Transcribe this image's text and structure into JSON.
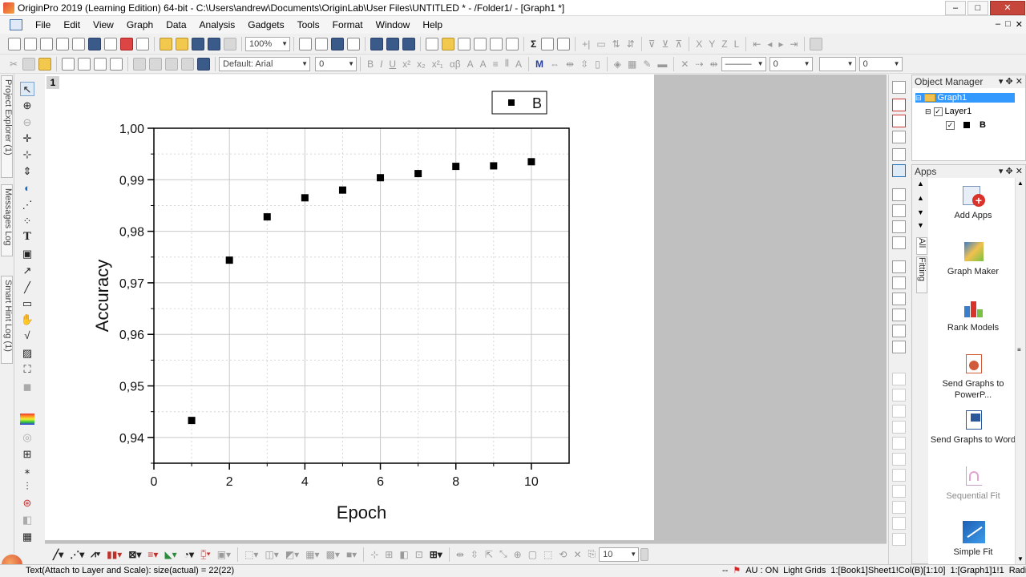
{
  "window": {
    "title": "OriginPro 2019 (Learning Edition) 64-bit - C:\\Users\\andrew\\Documents\\OriginLab\\User Files\\UNTITLED * - /Folder1/ - [Graph1 *]",
    "buttons": [
      "–",
      "□",
      "✕"
    ]
  },
  "menu": {
    "items": [
      "File",
      "Edit",
      "View",
      "Graph",
      "Data",
      "Analysis",
      "Gadgets",
      "Tools",
      "Format",
      "Window",
      "Help"
    ],
    "mdi_buttons": [
      "–",
      "□",
      "✕"
    ]
  },
  "toolbar": {
    "zoom": "100%",
    "font": "Default: Arial",
    "font_size": "0",
    "line_width": "0",
    "line_width2": "0",
    "bottom_size": "10"
  },
  "left_dock": {
    "tabs": [
      "Project Explorer (1)",
      "Messages Log",
      "Smart Hint Log (1)"
    ]
  },
  "graph": {
    "layer_number": "1",
    "legend_label": "B",
    "chart_data": {
      "type": "scatter",
      "xlabel": "Epoch",
      "ylabel": "Accuracy",
      "xlim": [
        0,
        11
      ],
      "ylim": [
        0.935,
        1.0
      ],
      "x_ticks": [
        "0",
        "2",
        "4",
        "6",
        "8",
        "10"
      ],
      "y_ticks": [
        "0,94",
        "0,95",
        "0,96",
        "0,97",
        "0,98",
        "0,99",
        "1,00"
      ],
      "grid": true,
      "legend_placement": "top-right",
      "series": [
        {
          "name": "B",
          "marker": "square",
          "color": "#000000",
          "x": [
            1,
            2,
            3,
            4,
            5,
            6,
            7,
            8,
            9,
            10
          ],
          "y": [
            0.9433,
            0.9744,
            0.9828,
            0.9865,
            0.988,
            0.9904,
            0.9912,
            0.9926,
            0.9927,
            0.9935
          ]
        }
      ]
    }
  },
  "object_manager": {
    "title": "Object Manager",
    "graph": "Graph1",
    "layer": "Layer1",
    "plot": "B"
  },
  "apps": {
    "title": "Apps",
    "tabs": [
      "All",
      "Fitting"
    ],
    "items": [
      "Add Apps",
      "Graph Maker",
      "Rank Models",
      "Send Graphs to PowerP...",
      "Send Graphs to Word",
      "Sequential Fit",
      "Simple Fit"
    ]
  },
  "status": {
    "left": "Text(Attach to Layer and Scale): size(actual) = 22(22)",
    "au": "AU : ON",
    "theme": "Light Grids",
    "cell": "1:[Book1]Sheet1!Col(B)[1:10]",
    "graph": "1:[Graph1]1!1",
    "angle": "Radian"
  }
}
